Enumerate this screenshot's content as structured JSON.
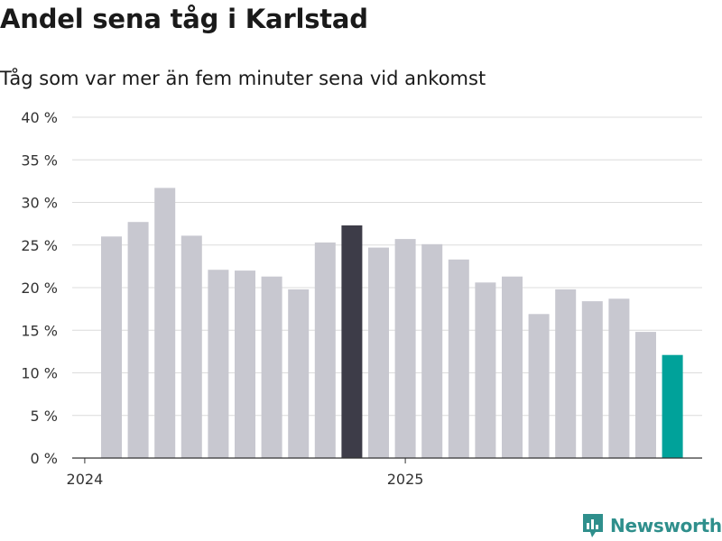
{
  "colors": {
    "bar_default": "#c8c8d0",
    "bar_highlight": "#3d3c48",
    "bar_latest": "#00a29a",
    "grid": "#dcdcdc",
    "axis": "#333333",
    "brand": "#2f8f8c"
  },
  "brand": {
    "name": "Newsworthy",
    "icon": "bar-chart-logo-icon"
  },
  "chart_data": {
    "type": "bar",
    "title": "Andel sena tåg i Karlstad",
    "subtitle": "Tåg som var mer än fem minuter sena vid ankomst",
    "xlabel": "",
    "ylabel": "",
    "ylim": [
      0,
      40
    ],
    "y_ticks": [
      0,
      5,
      10,
      15,
      20,
      25,
      30,
      35,
      40
    ],
    "y_tick_labels": [
      "0 %",
      "5 %",
      "10 %",
      "15 %",
      "20 %",
      "25 %",
      "30 %",
      "35 %",
      "40 %"
    ],
    "x_tick_labels": [
      {
        "label": "2024",
        "at_index": 0
      },
      {
        "label": "2025",
        "at_index": 12
      }
    ],
    "categories": [
      "2024-01",
      "2024-02",
      "2024-03",
      "2024-04",
      "2024-05",
      "2024-06",
      "2024-07",
      "2024-08",
      "2024-09",
      "2024-10",
      "2024-11",
      "2024-12",
      "2025-01",
      "2025-02",
      "2025-03",
      "2025-04",
      "2025-05",
      "2025-06",
      "2025-07",
      "2025-08",
      "2025-09",
      "2025-10",
      "2025-11",
      "2025-12"
    ],
    "values": [
      null,
      26.0,
      27.7,
      31.7,
      26.1,
      22.1,
      22.0,
      21.3,
      19.8,
      25.3,
      27.3,
      24.7,
      25.7,
      25.1,
      23.3,
      20.6,
      21.3,
      16.9,
      19.8,
      18.4,
      18.7,
      14.8,
      12.1,
      null
    ],
    "highlight": [
      {
        "index": 10,
        "color": "bar_highlight"
      },
      {
        "index": 22,
        "color": "bar_latest"
      }
    ],
    "grid": true
  }
}
